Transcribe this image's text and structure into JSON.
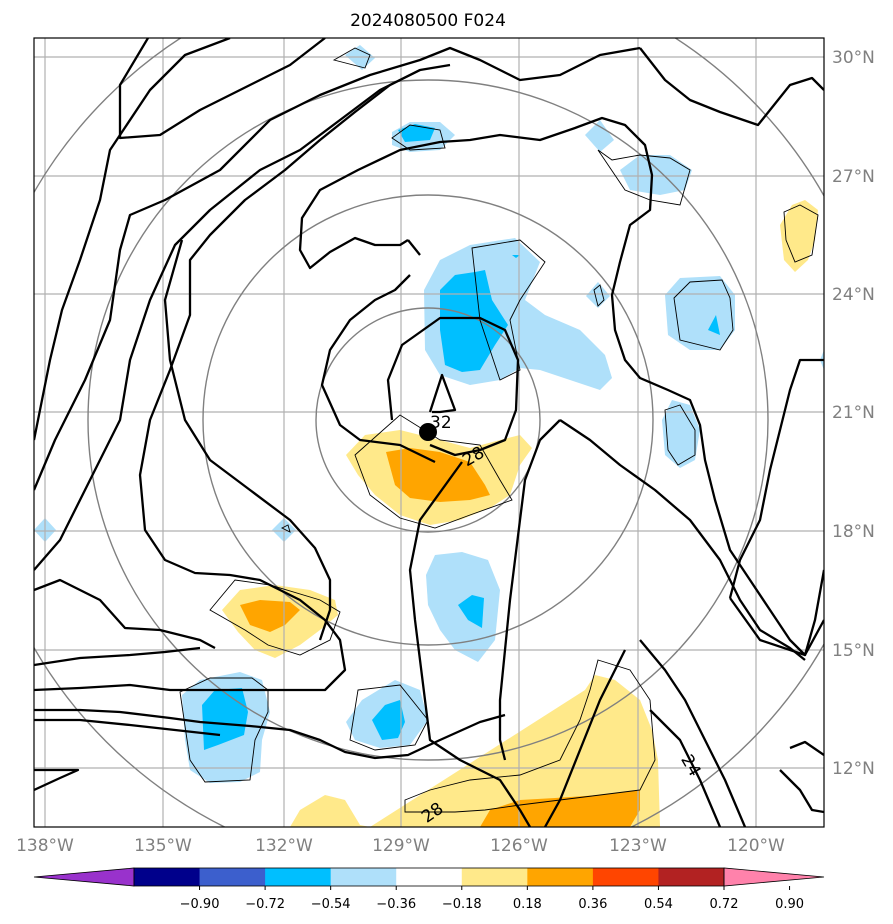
{
  "title": "2024080500 F024",
  "map": {
    "lon_ticks": [
      "138°W",
      "135°W",
      "132°W",
      "129°W",
      "126°W",
      "123°W",
      "120°W"
    ],
    "lat_ticks": [
      "30°N",
      "27°N",
      "24°N",
      "21°N",
      "18°N",
      "15°N",
      "12°N"
    ],
    "contour_labels": [
      "32",
      "28",
      "28",
      "24"
    ],
    "storm_center": {
      "lon": -128.1,
      "lat": 20.5
    }
  },
  "colorbar": {
    "labels": [
      "−0.90",
      "−0.72",
      "−0.54",
      "−0.36",
      "−0.18",
      "0.18",
      "0.36",
      "0.54",
      "0.72",
      "0.90"
    ],
    "colors": [
      "#9932cc",
      "#00008b",
      "#3c5fcd",
      "#00bfff",
      "#afe0fa",
      "#ffffff",
      "#ffe98a",
      "#ffa500",
      "#ff4500",
      "#b22222",
      "#ff82ab"
    ]
  }
}
